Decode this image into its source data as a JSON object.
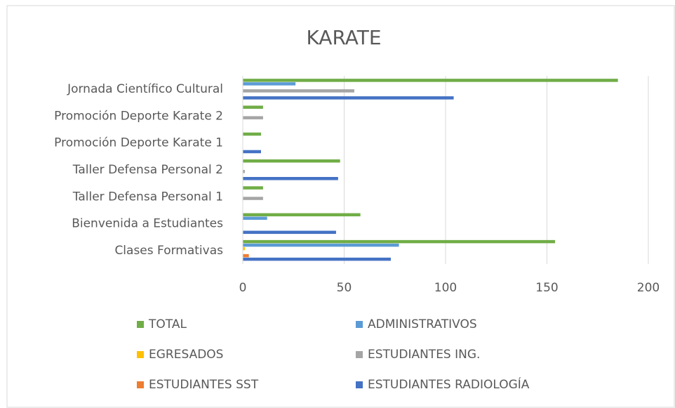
{
  "chart_data": {
    "type": "bar",
    "orientation": "horizontal",
    "title": "KARATE",
    "categories": [
      "Jornada Científico Cultural",
      "Promoción Deporte Karate 2",
      "Promoción Deporte Karate 1",
      "Taller Defensa Personal 2",
      "Taller Defensa Personal 1",
      "Bienvenida a Estudiantes",
      "Clases Formativas"
    ],
    "series": [
      {
        "name": "TOTAL",
        "color": "#70ad47",
        "values": [
          185,
          10,
          9,
          48,
          10,
          58,
          154
        ]
      },
      {
        "name": "ADMINISTRATIVOS",
        "color": "#5b9bd5",
        "values": [
          26,
          0,
          0,
          0,
          0,
          12,
          77
        ]
      },
      {
        "name": "EGRESADOS",
        "color": "#ffc000",
        "values": [
          0,
          0,
          0,
          0,
          0,
          0,
          1
        ]
      },
      {
        "name": "ESTUDIANTES ING.",
        "color": "#a5a5a5",
        "values": [
          55,
          10,
          0,
          1,
          10,
          0,
          0
        ]
      },
      {
        "name": "ESTUDIANTES SST",
        "color": "#ed7d31",
        "values": [
          0,
          0,
          0,
          0,
          0,
          0,
          3
        ]
      },
      {
        "name": "ESTUDIANTES RADIOLOGÍA",
        "color": "#4472c4",
        "values": [
          104,
          0,
          9,
          47,
          0,
          46,
          73
        ]
      }
    ],
    "xlim": [
      0,
      200
    ],
    "xticks": [
      0,
      50,
      100,
      150,
      200
    ],
    "grid": true,
    "legend": "bottom"
  }
}
